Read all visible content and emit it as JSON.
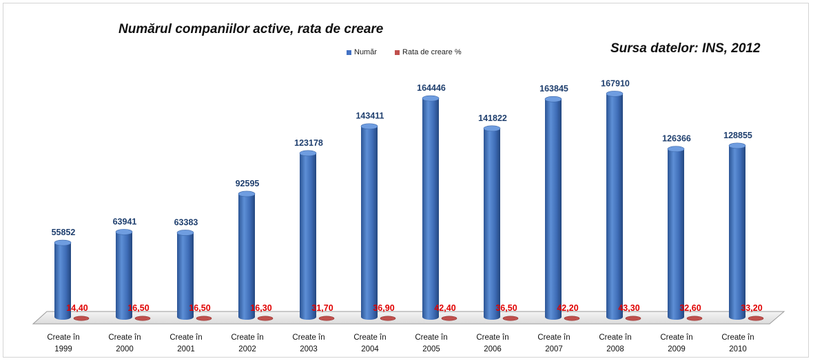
{
  "title": "Numărul companiilor active, rata de creare",
  "source": "Sursa datelor: INS, 2012",
  "legend": [
    {
      "name": "Număr",
      "color": "#4472c4"
    },
    {
      "name": "Rata de creare %",
      "color": "#c0504d"
    }
  ],
  "chart_data": {
    "type": "bar",
    "title": "Numărul companiilor active, rata de creare",
    "categories": [
      [
        "Create în",
        "1999"
      ],
      [
        "Create în",
        "2000"
      ],
      [
        "Create în",
        "2001"
      ],
      [
        "Create în",
        "2002"
      ],
      [
        "Create în",
        "2003"
      ],
      [
        "Create în",
        "2004"
      ],
      [
        "Create în",
        "2005"
      ],
      [
        "Create în",
        "2006"
      ],
      [
        "Create în",
        "2007"
      ],
      [
        "Create în",
        "2008"
      ],
      [
        "Create în",
        "2009"
      ],
      [
        "Create în",
        "2010"
      ]
    ],
    "series": [
      {
        "name": "Număr",
        "color": "#4472c4",
        "values": [
          55852,
          63941,
          63383,
          92595,
          123178,
          143411,
          164446,
          141822,
          163845,
          167910,
          126366,
          128855
        ],
        "labels": [
          "55852",
          "63941",
          "63383",
          "92595",
          "123178",
          "143411",
          "164446",
          "141822",
          "163845",
          "167910",
          "126366",
          "128855"
        ]
      },
      {
        "name": "Rata de creare %",
        "color": "#c0504d",
        "values": [
          14.4,
          16.5,
          16.5,
          16.3,
          31.7,
          36.9,
          42.4,
          36.5,
          42.2,
          43.3,
          32.6,
          33.2
        ],
        "labels": [
          "14,40",
          "16,50",
          "16,50",
          "16,30",
          "31,70",
          "36,90",
          "42,40",
          "36,50",
          "42,20",
          "43,30",
          "32,60",
          "33,20"
        ]
      }
    ],
    "ylim": [
      0,
      180000
    ],
    "grid": false,
    "legend_position": "top-center",
    "three_d": true
  }
}
